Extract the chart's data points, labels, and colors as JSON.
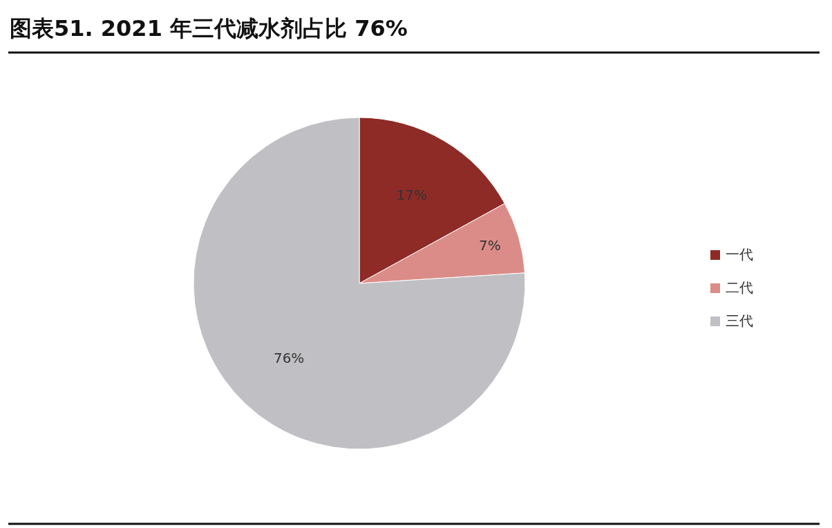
{
  "chart_data": {
    "type": "pie",
    "title": "图表51. 2021 年三代减水剂占比 76%",
    "categories": [
      "一代",
      "二代",
      "三代"
    ],
    "values": [
      17,
      7,
      76
    ],
    "colors": [
      "#8e2b27",
      "#dc8c88",
      "#c0c0c4"
    ],
    "value_labels": [
      "17%",
      "7%",
      "76%"
    ],
    "legend": "right"
  }
}
